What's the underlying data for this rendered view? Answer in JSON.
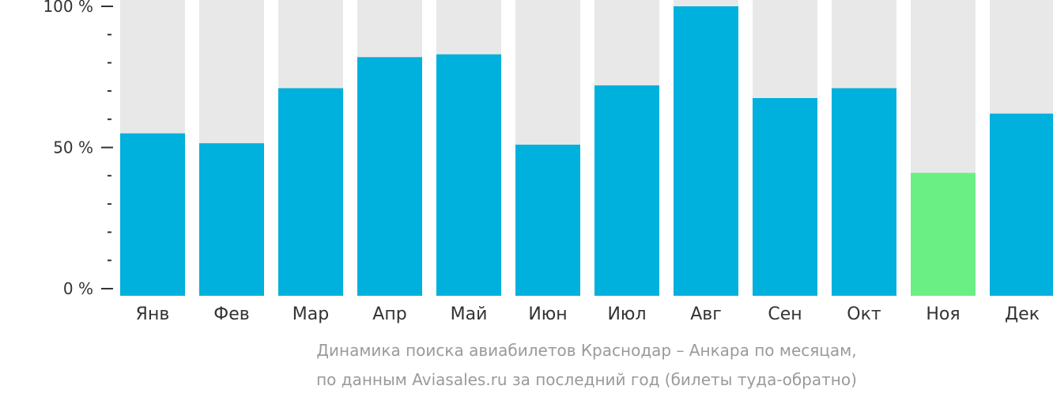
{
  "chart_data": {
    "type": "bar",
    "categories": [
      "Янв",
      "Фев",
      "Мар",
      "Апр",
      "Май",
      "Июн",
      "Июл",
      "Авг",
      "Сен",
      "Окт",
      "Ноя",
      "Дек"
    ],
    "values": [
      55,
      51.5,
      71,
      82,
      83,
      51,
      72,
      100,
      67.5,
      71,
      41,
      62
    ],
    "ylim": [
      0,
      100
    ],
    "yticks": [
      {
        "value": 0,
        "label": "0 %"
      },
      {
        "value": 50,
        "label": "50 %"
      },
      {
        "value": 100,
        "label": "100 %"
      }
    ],
    "minor_tick_step": 10,
    "highlight_index": 10,
    "colors": {
      "bar": "#00b0dd",
      "highlight": "#6aef84",
      "background_bar": "#e8e8e8",
      "axis": "#333333"
    }
  },
  "caption": {
    "line1": "Динамика поиска авиабилетов Краснодар – Анкара по месяцам,",
    "line2": "по данным Aviasales.ru за последний год (билеты туда-обратно)"
  }
}
